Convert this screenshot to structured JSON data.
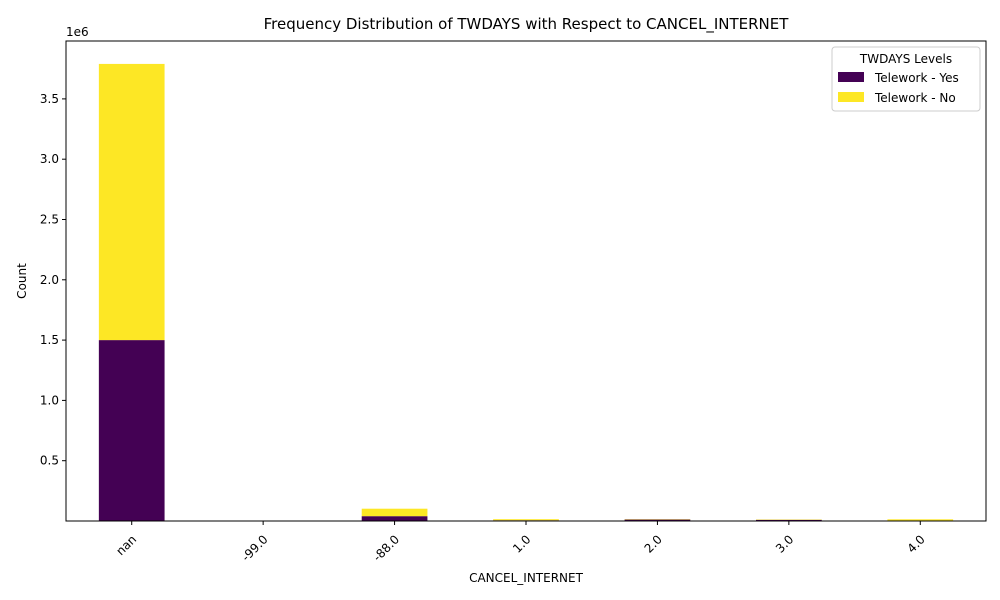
{
  "chart_data": {
    "type": "bar",
    "stacked": true,
    "title": "Frequency Distribution of TWDAYS with Respect to CANCEL_INTERNET",
    "xlabel": "CANCEL_INTERNET",
    "ylabel": "Count",
    "y_offset_label": "1e6",
    "categories": [
      "nan",
      "-99.0",
      "-88.0",
      "1.0",
      "2.0",
      "3.0",
      "4.0"
    ],
    "series": [
      {
        "name": "Telework - Yes",
        "color": "#440154",
        "values": [
          1500000,
          1000,
          40000,
          6000,
          12000,
          10000,
          4000
        ]
      },
      {
        "name": "Telework - No",
        "color": "#fde725",
        "values": [
          2290000,
          1000,
          62000,
          9000,
          3000,
          3000,
          10000
        ]
      }
    ],
    "ylim": [
      0,
      3980000
    ],
    "yticks": [
      500000,
      1000000,
      1500000,
      2000000,
      2500000,
      3000000,
      3500000
    ],
    "ytick_labels": [
      "0.5",
      "1.0",
      "1.5",
      "2.0",
      "2.5",
      "3.0",
      "3.5"
    ],
    "legend": {
      "title": "TWDAYS Levels",
      "position": "top-right"
    },
    "grid": false
  }
}
